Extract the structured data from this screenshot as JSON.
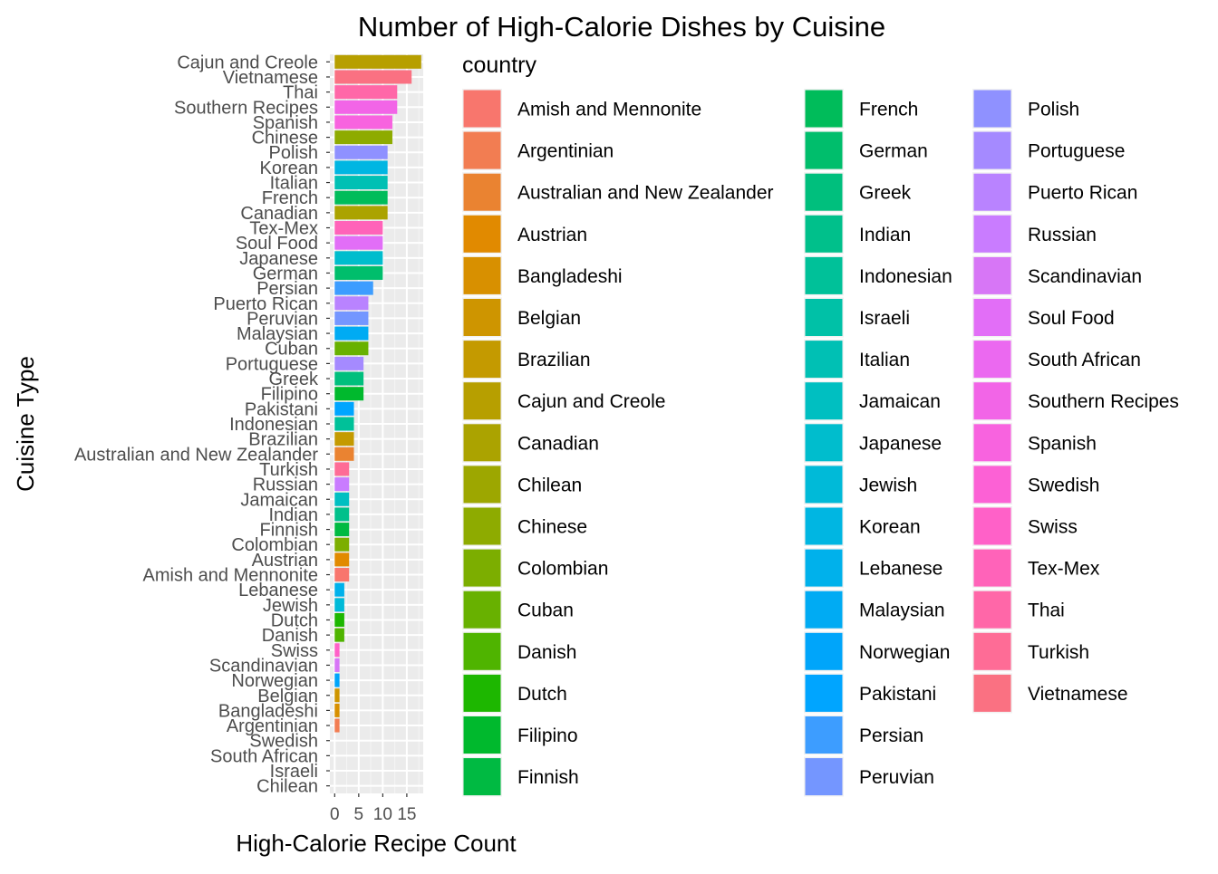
{
  "chart_data": {
    "type": "bar",
    "orientation": "horizontal",
    "title": "Number of High-Calorie Dishes by Cuisine",
    "xlabel": "High-Calorie Recipe Count",
    "ylabel": "Cuisine Type",
    "xlim": [
      0,
      18
    ],
    "xticks": [
      0,
      5,
      10,
      15
    ],
    "xtick_labels": [
      "0",
      "5",
      "10",
      "15"
    ],
    "grid": true,
    "legend": {
      "title": "country",
      "placement": "right",
      "columns": 3,
      "entries": [
        {
          "label": "Amish and Mennonite",
          "color": "#F8766D"
        },
        {
          "label": "Argentinian",
          "color": "#F27D52"
        },
        {
          "label": "Australian and New Zealander",
          "color": "#EA8331"
        },
        {
          "label": "Austrian",
          "color": "#E18A00"
        },
        {
          "label": "Bangladeshi",
          "color": "#D89000"
        },
        {
          "label": "Belgian",
          "color": "#CE9500"
        },
        {
          "label": "Brazilian",
          "color": "#C49A00"
        },
        {
          "label": "Cajun and Creole",
          "color": "#B79F00"
        },
        {
          "label": "Canadian",
          "color": "#ABA300"
        },
        {
          "label": "Chilean",
          "color": "#9DA700"
        },
        {
          "label": "Chinese",
          "color": "#8EAB00"
        },
        {
          "label": "Colombian",
          "color": "#7CAE00"
        },
        {
          "label": "Cuban",
          "color": "#68B100"
        },
        {
          "label": "Danish",
          "color": "#4FB400"
        },
        {
          "label": "Dutch",
          "color": "#1DB700"
        },
        {
          "label": "Filipino",
          "color": "#00B92D"
        },
        {
          "label": "Finnish",
          "color": "#00BA42"
        },
        {
          "label": "French",
          "color": "#00BC5A"
        },
        {
          "label": "German",
          "color": "#00BE6C"
        },
        {
          "label": "Greek",
          "color": "#00BF7D"
        },
        {
          "label": "Indian",
          "color": "#00C08B"
        },
        {
          "label": "Indonesian",
          "color": "#00C199"
        },
        {
          "label": "Israeli",
          "color": "#00C1A7"
        },
        {
          "label": "Italian",
          "color": "#00C0B4"
        },
        {
          "label": "Jamaican",
          "color": "#00BFC1"
        },
        {
          "label": "Japanese",
          "color": "#00BDCD"
        },
        {
          "label": "Jewish",
          "color": "#00BAD8"
        },
        {
          "label": "Korean",
          "color": "#00B6E2"
        },
        {
          "label": "Lebanese",
          "color": "#00B1EB"
        },
        {
          "label": "Malaysian",
          "color": "#00ABF3"
        },
        {
          "label": "Norwegian",
          "color": "#00A5FA"
        },
        {
          "label": "Pakistani",
          "color": "#00A5FF"
        },
        {
          "label": "Persian",
          "color": "#3D9DFF"
        },
        {
          "label": "Peruvian",
          "color": "#7496FF"
        },
        {
          "label": "Polish",
          "color": "#8F91FF"
        },
        {
          "label": "Portuguese",
          "color": "#A58AFF"
        },
        {
          "label": "Puerto Rican",
          "color": "#B983FF"
        },
        {
          "label": "Russian",
          "color": "#C97CFF"
        },
        {
          "label": "Scandinavian",
          "color": "#D776F6"
        },
        {
          "label": "Soul Food",
          "color": "#E26EF7"
        },
        {
          "label": "South African",
          "color": "#EB69F0"
        },
        {
          "label": "Southern Recipes",
          "color": "#F265E7"
        },
        {
          "label": "Spanish",
          "color": "#F863DF"
        },
        {
          "label": "Swedish",
          "color": "#FC61D5"
        },
        {
          "label": "Swiss",
          "color": "#FF61C8"
        },
        {
          "label": "Tex-Mex",
          "color": "#FF63B9"
        },
        {
          "label": "Thai",
          "color": "#FF67A8"
        },
        {
          "label": "Turkish",
          "color": "#FE6C96"
        },
        {
          "label": "Vietnamese",
          "color": "#FA7182"
        }
      ]
    },
    "categories": [
      "Cajun and Creole",
      "Vietnamese",
      "Thai",
      "Southern Recipes",
      "Spanish",
      "Chinese",
      "Polish",
      "Korean",
      "Italian",
      "French",
      "Canadian",
      "Tex-Mex",
      "Soul Food",
      "Japanese",
      "German",
      "Persian",
      "Puerto Rican",
      "Peruvian",
      "Malaysian",
      "Cuban",
      "Portuguese",
      "Greek",
      "Filipino",
      "Pakistani",
      "Indonesian",
      "Brazilian",
      "Australian and New Zealander",
      "Turkish",
      "Russian",
      "Jamaican",
      "Indian",
      "Finnish",
      "Colombian",
      "Austrian",
      "Amish and Mennonite",
      "Lebanese",
      "Jewish",
      "Dutch",
      "Danish",
      "Swiss",
      "Scandinavian",
      "Norwegian",
      "Belgian",
      "Bangladeshi",
      "Argentinian",
      "Swedish",
      "South African",
      "Israeli",
      "Chilean"
    ],
    "values": [
      18,
      16,
      13,
      13,
      12,
      12,
      11,
      11,
      11,
      11,
      11,
      10,
      10,
      10,
      10,
      8,
      7,
      7,
      7,
      7,
      6,
      6,
      6,
      4,
      4,
      4,
      4,
      3,
      3,
      3,
      3,
      3,
      3,
      3,
      3,
      2,
      2,
      2,
      2,
      1,
      1,
      1,
      1,
      1,
      1,
      0,
      0,
      0,
      0
    ]
  }
}
